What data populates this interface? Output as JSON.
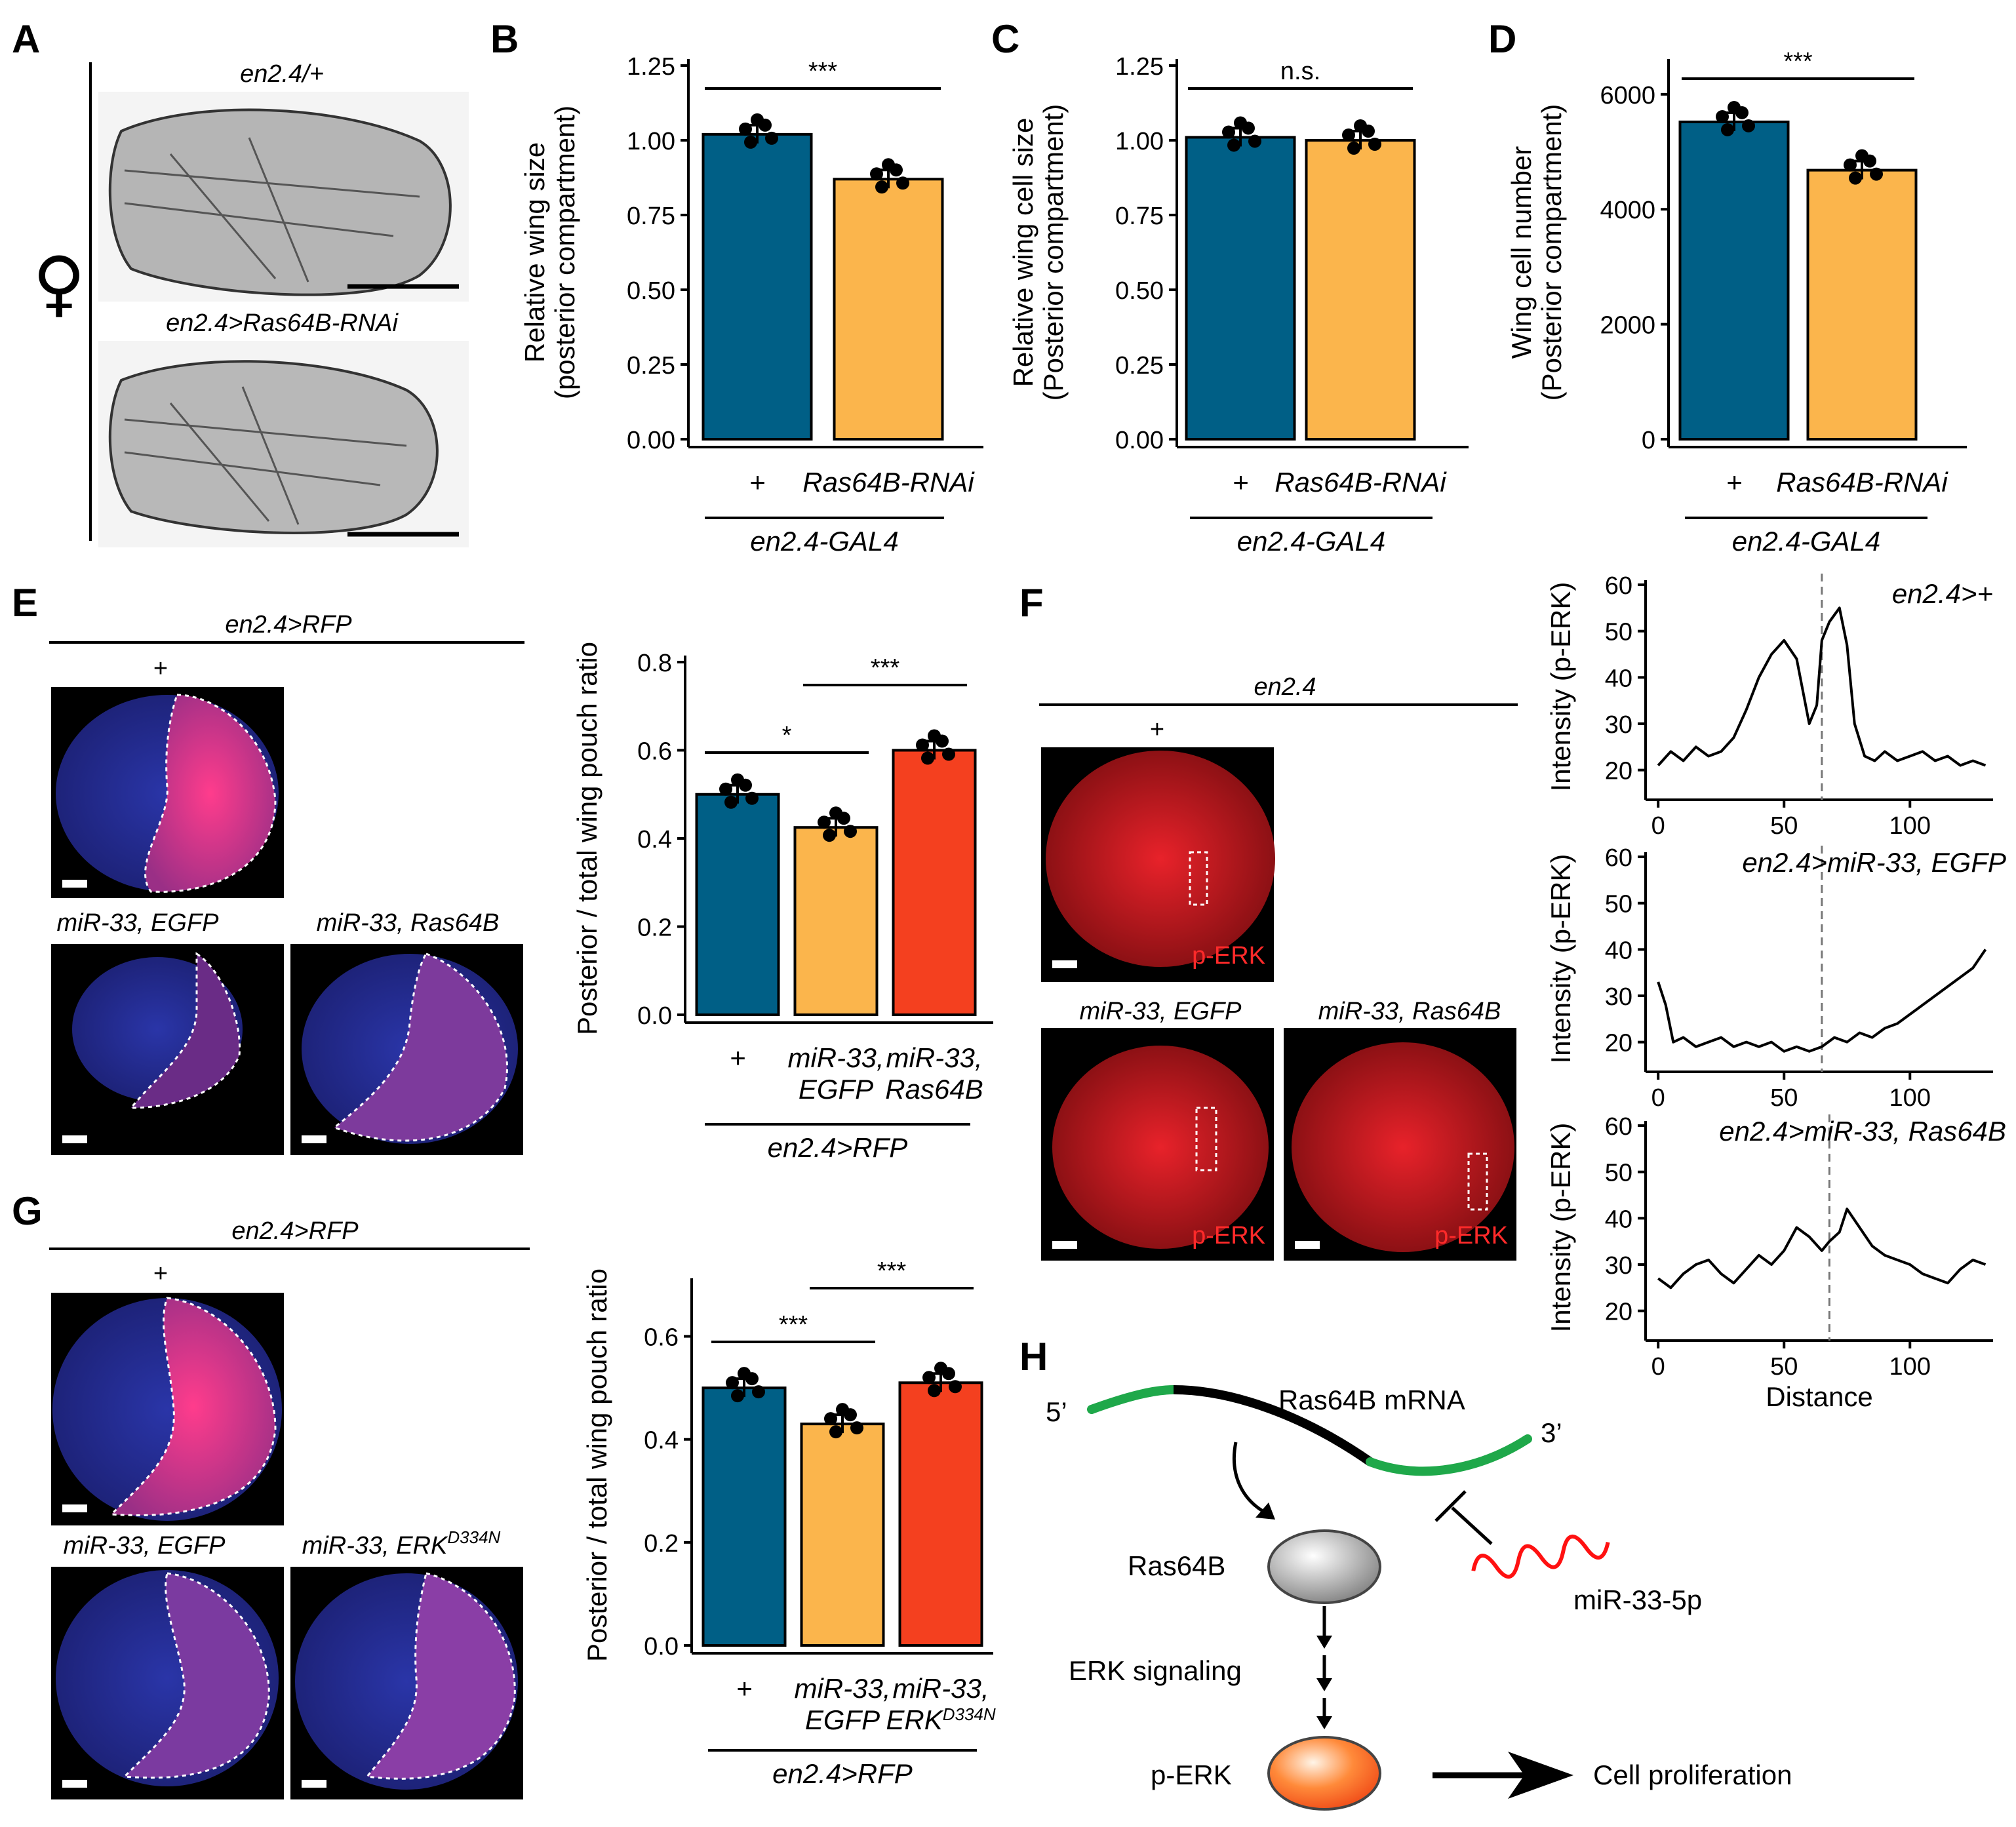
{
  "colors": {
    "blue": "#005f86",
    "yellow": "#fbb54c",
    "red": "#f4401f",
    "green": "#1fa84a",
    "line": "#000000"
  },
  "panels": {
    "A": "A",
    "B": "B",
    "C": "C",
    "D": "D",
    "E": "E",
    "F": "F",
    "G": "G",
    "H": "H"
  },
  "panelA": {
    "symbol": "♀",
    "top_label": "en2.4/+",
    "bottom_label": "en2.4>Ras64B-RNAi"
  },
  "charts": {
    "B": {
      "type": "bar",
      "ylabel_line1": "Relative wing size",
      "ylabel_line2": "(posterior compartment)",
      "ticks": [
        "0.00",
        "0.25",
        "0.50",
        "0.75",
        "1.00",
        "1.25"
      ],
      "ylim": [
        0,
        1.25
      ],
      "categories": [
        "+",
        "Ras64B-RNAi"
      ],
      "values": [
        1.02,
        0.87
      ],
      "sig": "***",
      "group": "en2.4-GAL4"
    },
    "C": {
      "type": "bar",
      "ylabel_line1": "Relative wing cell size",
      "ylabel_line2": "(Posterior compartment)",
      "ticks": [
        "0.00",
        "0.25",
        "0.50",
        "0.75",
        "1.00",
        "1.25"
      ],
      "ylim": [
        0,
        1.25
      ],
      "categories": [
        "+",
        "Ras64B-RNAi"
      ],
      "values": [
        1.01,
        1.0
      ],
      "sig": "n.s.",
      "group": "en2.4-GAL4"
    },
    "D": {
      "type": "bar",
      "ylabel_line1": "Wing cell number",
      "ylabel_line2": "(Posterior compartment)",
      "ticks": [
        "0",
        "2000",
        "4000",
        "6000"
      ],
      "ylim": [
        0,
        6500
      ],
      "categories": [
        "+",
        "Ras64B-RNAi"
      ],
      "values": [
        5520,
        4680
      ],
      "sig": "***",
      "group": "en2.4-GAL4"
    },
    "E": {
      "type": "bar",
      "ylabel": "Posterior / total wing pouch ratio",
      "ticks": [
        "0.0",
        "0.2",
        "0.4",
        "0.6",
        "0.8"
      ],
      "ylim": [
        0,
        0.8
      ],
      "categories": [
        "+",
        "miR-33, EGFP",
        "miR-33, Ras64B"
      ],
      "cat_line1": [
        "+",
        "miR-33,",
        "miR-33,"
      ],
      "cat_line2": [
        "",
        "EGFP",
        "Ras64B"
      ],
      "values": [
        0.5,
        0.425,
        0.6
      ],
      "sig1": "*",
      "sig2": "***",
      "group": "en2.4>RFP"
    },
    "G": {
      "type": "bar",
      "ylabel": "Posterior / total wing pouch ratio",
      "ticks": [
        "0.0",
        "0.2",
        "0.4",
        "0.6"
      ],
      "ylim": [
        0,
        0.7
      ],
      "categories": [
        "+",
        "miR-33, EGFP",
        "miR-33, ERK D334N"
      ],
      "cat_line1": [
        "+",
        "miR-33,",
        "miR-33,"
      ],
      "cat_line2": [
        "",
        "EGFP",
        "ERK"
      ],
      "cat_sup": "D334N",
      "values": [
        0.5,
        0.43,
        0.51
      ],
      "sig1": "***",
      "sig2": "***",
      "group": "en2.4>RFP"
    }
  },
  "panelE": {
    "header": "en2.4>RFP",
    "plus": "+",
    "sub1": "miR-33, EGFP",
    "sub2": "miR-33, Ras64B"
  },
  "panelG": {
    "header": "en2.4>RFP",
    "plus": "+",
    "sub1": "miR-33, EGFP",
    "sub2_main": "miR-33, ERK",
    "sub2_sup": "D334N"
  },
  "panelF": {
    "header": "en2.4",
    "plus": "+",
    "sub1": "miR-33, EGFP",
    "sub2": "miR-33, Ras64B",
    "stain": "p-ERK"
  },
  "line_charts": {
    "chart_data": [
      {
        "type": "line",
        "title": "en2.4>+",
        "ylabel": "Intensity (p-ERK)",
        "xticks": [
          "0",
          "50",
          "100"
        ],
        "yticks": [
          "20",
          "30",
          "40",
          "50",
          "60"
        ],
        "xlim": [
          -5,
          133
        ],
        "ylim": [
          15,
          61
        ],
        "marker_x": 65,
        "x": [
          0,
          5,
          10,
          15,
          20,
          25,
          30,
          35,
          40,
          45,
          50,
          55,
          60,
          63,
          65,
          68,
          72,
          75,
          78,
          82,
          86,
          90,
          95,
          100,
          105,
          110,
          115,
          120,
          125,
          130
        ],
        "y": [
          21,
          24,
          22,
          25,
          23,
          24,
          27,
          33,
          40,
          45,
          48,
          44,
          30,
          34,
          48,
          52,
          55,
          47,
          30,
          23,
          22,
          24,
          22,
          23,
          24,
          22,
          23,
          21,
          22,
          21
        ]
      },
      {
        "type": "line",
        "title": "en2.4>miR-33, EGFP",
        "ylabel": "Intensity (p-ERK)",
        "xticks": [
          "0",
          "50",
          "100"
        ],
        "yticks": [
          "20",
          "30",
          "40",
          "50",
          "60"
        ],
        "xlim": [
          -5,
          133
        ],
        "ylim": [
          15,
          61
        ],
        "marker_x": 65,
        "x": [
          0,
          3,
          6,
          10,
          15,
          20,
          25,
          30,
          35,
          40,
          45,
          50,
          55,
          60,
          65,
          70,
          75,
          80,
          85,
          90,
          95,
          100,
          105,
          110,
          115,
          120,
          125,
          130
        ],
        "y": [
          33,
          28,
          20,
          21,
          19,
          20,
          21,
          19,
          20,
          19,
          20,
          18,
          19,
          18,
          19,
          21,
          20,
          22,
          21,
          23,
          24,
          26,
          28,
          30,
          32,
          34,
          36,
          40
        ]
      },
      {
        "type": "line",
        "title": "en2.4>miR-33, Ras64B",
        "ylabel": "Intensity (p-ERK)",
        "xticks": [
          "0",
          "50",
          "100"
        ],
        "yticks": [
          "20",
          "30",
          "40",
          "50",
          "60"
        ],
        "xlim": [
          -5,
          133
        ],
        "ylim": [
          15,
          61
        ],
        "marker_x": 68,
        "x": [
          0,
          5,
          10,
          15,
          20,
          25,
          30,
          35,
          40,
          45,
          50,
          55,
          60,
          65,
          68,
          72,
          75,
          80,
          85,
          90,
          95,
          100,
          105,
          110,
          115,
          120,
          125,
          130
        ],
        "y": [
          27,
          25,
          28,
          30,
          31,
          28,
          26,
          29,
          32,
          30,
          33,
          38,
          36,
          33,
          35,
          37,
          42,
          38,
          34,
          32,
          31,
          30,
          28,
          27,
          26,
          29,
          31,
          30
        ],
        "xlabel": "Distance"
      }
    ]
  },
  "panelH": {
    "five": "5’",
    "three": "3’",
    "mrna": "Ras64B mRNA",
    "ras": "Ras64B",
    "mir": "miR-33-5p",
    "erk": "ERK signaling",
    "perk": "p-ERK",
    "prolif": "Cell proliferation"
  }
}
